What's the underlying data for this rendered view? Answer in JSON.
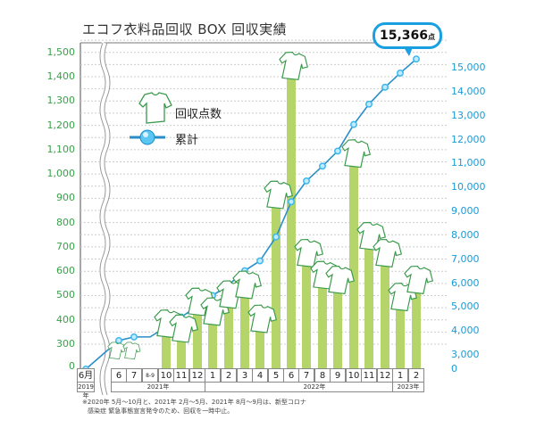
{
  "title": "エコフ衣料品回収 BOX 回収実績",
  "callout": {
    "value": "15,366",
    "unit": "点"
  },
  "legend": {
    "bars_label": "回収点数",
    "line_label": "累計",
    "shirt_icon": "t-shirt-icon",
    "line_icon": "blue-dot-line-icon"
  },
  "left_axis": {
    "ticks": [
      "1,500",
      "1,400",
      "1,300",
      "1,200",
      "1,100",
      "1,000",
      "900",
      "800",
      "700",
      "600",
      "500",
      "400",
      "300",
      "0"
    ],
    "color": "#3aa04a"
  },
  "right_axis": {
    "ticks": [
      "15,000",
      "14,000",
      "13,000",
      "12,000",
      "11,000",
      "10,000",
      "9,000",
      "8,000",
      "7,000",
      "6,000",
      "5,000",
      "4,000",
      "3,000",
      "0"
    ],
    "color": "#1a9ad6"
  },
  "x_months": [
    "6月",
    "6月",
    "7月",
    "8-9月",
    "10月",
    "11月",
    "12月",
    "1月",
    "2月",
    "3月",
    "4月",
    "5月",
    "6月",
    "7月",
    "8月",
    "9月",
    "10月",
    "11月",
    "12月",
    "1月",
    "2月"
  ],
  "x_years": [
    {
      "label": "2019年"
    },
    {
      "label": "2021年"
    },
    {
      "label": "2022年"
    },
    {
      "label": "2023年"
    }
  ],
  "footnote_line1": "※2020年 5月〜10月と、2021年 2月〜5月、2021年 8月〜9月は、新型コロナ",
  "footnote_line2": "感染症 緊急事態宣言発令のため、回収を一時中止。",
  "colors": {
    "bar": "#b5d46a",
    "line": "#2a8ec8",
    "marker": "#3bb8ee",
    "shirt_stroke": "#3a9a4a"
  },
  "chart_data": {
    "type": "bar+line",
    "title": "エコフ衣料品回収 BOX 回収実績",
    "categories": [
      "2019/6",
      "2021/6",
      "2021/7",
      "2021/8-9",
      "2021/10",
      "2021/11",
      "2021/12",
      "2022/1",
      "2022/2",
      "2022/3",
      "2022/4",
      "2022/5",
      "2022/6",
      "2022/7",
      "2022/8",
      "2022/9",
      "2022/10",
      "2022/11",
      "2022/12",
      "2023/1",
      "2023/2"
    ],
    "series": [
      {
        "name": "回収点数",
        "type": "bar",
        "axis": "left",
        "values": [
          0,
          50,
          50,
          null,
          360,
          340,
          450,
          410,
          480,
          520,
          380,
          890,
          1420,
          650,
          560,
          540,
          1060,
          720,
          650,
          470,
          540
        ]
      },
      {
        "name": "累計",
        "type": "line",
        "axis": "right",
        "values": [
          0,
          3600,
          3750,
          3750,
          4170,
          4580,
          5050,
          5480,
          5930,
          6520,
          6930,
          7930,
          9400,
          10270,
          10890,
          11520,
          12630,
          13480,
          14190,
          14780,
          15366
        ]
      }
    ],
    "ylim_left": [
      0,
      1500
    ],
    "ylim_right": [
      0,
      15000
    ],
    "axis_break": "0-300 left, 0-3000 right, 2019-2021 x break",
    "legend_position": "upper-left inside",
    "grid": true,
    "annotation": "15,366点"
  }
}
